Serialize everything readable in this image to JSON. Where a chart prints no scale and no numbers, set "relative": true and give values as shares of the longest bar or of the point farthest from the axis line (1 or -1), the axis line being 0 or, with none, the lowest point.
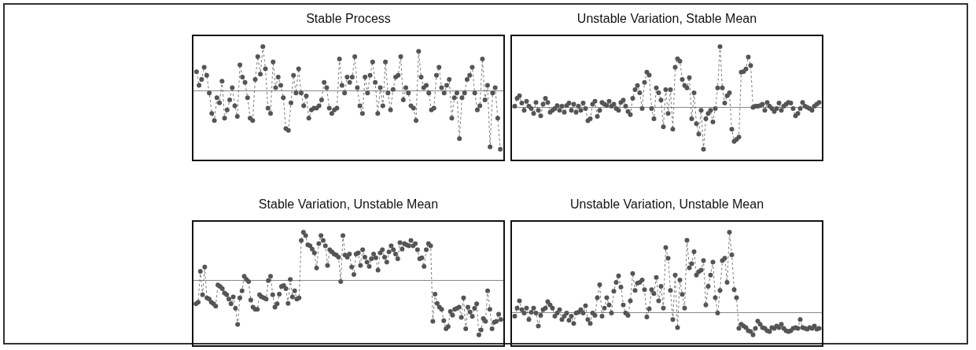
{
  "chart_data": [
    {
      "type": "line",
      "title": "Stable Process",
      "relative": true,
      "color": "#555555",
      "marker": "circle",
      "line_style": "dotted",
      "categories": [
        null,
        null,
        null,
        null,
        null,
        null,
        null,
        null,
        null,
        null,
        null,
        null,
        null,
        null,
        null,
        null,
        null,
        null,
        null,
        null,
        null,
        null,
        null,
        null,
        null,
        null,
        null,
        null,
        null,
        null,
        null,
        null,
        null,
        null,
        null,
        null,
        null,
        null,
        null,
        null,
        null,
        null,
        null,
        null,
        null,
        null,
        null,
        null,
        null,
        null,
        null,
        null,
        null,
        null,
        null,
        null,
        null,
        null,
        null,
        null,
        null,
        null,
        null,
        null,
        null,
        null,
        null,
        null,
        null,
        null,
        null,
        null,
        null,
        null,
        null,
        null,
        null,
        null,
        null,
        null,
        null,
        null,
        null,
        null,
        null,
        null,
        null,
        null,
        null,
        null,
        null,
        null,
        null,
        null,
        null,
        null,
        null,
        null,
        null,
        null,
        null,
        null,
        null,
        null,
        null,
        null,
        null,
        null,
        null,
        null,
        null,
        null,
        null,
        null,
        null,
        null,
        null,
        null,
        null,
        null
      ],
      "values": [
        0.32,
        0.09,
        0.19,
        0.4,
        0.26,
        -0.04,
        -0.39,
        -0.51,
        -0.12,
        -0.21,
        0.16,
        -0.47,
        -0.33,
        -0.16,
        0.05,
        -0.26,
        -0.44,
        0.44,
        0.23,
        0.14,
        -0.12,
        -0.47,
        -0.51,
        0.19,
        0.58,
        0.28,
        0.75,
        0.37,
        -0.3,
        -0.39,
        0.49,
        0.05,
        0.23,
        0.09,
        -0.12,
        -0.65,
        -0.68,
        -0.21,
        0.26,
        -0.04,
        0.37,
        -0.04,
        -0.26,
        -0.09,
        -0.47,
        -0.33,
        -0.3,
        -0.3,
        -0.26,
        -0.16,
        0.14,
        0.05,
        -0.3,
        -0.39,
        -0.33,
        -0.3,
        0.54,
        0.09,
        -0.04,
        0.23,
        0.14,
        0.23,
        0.58,
        0.05,
        -0.26,
        -0.39,
        0.23,
        -0.04,
        0.26,
        0.49,
        0.14,
        -0.39,
        0.05,
        -0.26,
        0.49,
        -0.04,
        -0.33,
        0.02,
        0.23,
        0.26,
        0.58,
        -0.16,
        0.05,
        -0.04,
        -0.26,
        -0.3,
        -0.51,
        0.67,
        0.23,
        0.05,
        0.09,
        -0.04,
        -0.33,
        -0.3,
        0.26,
        0.4,
        0.05,
        -0.04,
        0.09,
        0.19,
        -0.47,
        -0.12,
        -0.04,
        -0.82,
        -0.12,
        -0.04,
        0.19,
        0.26,
        0.4,
        -0.04,
        -0.33,
        -0.26,
        0.54,
        -0.16,
        0.09,
        -0.96,
        -0.04,
        0.05,
        -0.47,
        -1.0
      ]
    },
    {
      "type": "line",
      "title": "Unstable Variation, Stable Mean",
      "relative": true,
      "color": "#555555",
      "marker": "circle",
      "line_style": "dotted",
      "categories": [
        null,
        null,
        null,
        null,
        null,
        null,
        null,
        null,
        null,
        null,
        null,
        null,
        null,
        null,
        null,
        null,
        null,
        null,
        null,
        null,
        null,
        null,
        null,
        null,
        null,
        null,
        null,
        null,
        null,
        null,
        null,
        null,
        null,
        null,
        null,
        null,
        null,
        null,
        null,
        null,
        null,
        null,
        null,
        null,
        null,
        null,
        null,
        null,
        null,
        null,
        null,
        null,
        null,
        null,
        null,
        null,
        null,
        null,
        null,
        null,
        null,
        null,
        null,
        null,
        null,
        null,
        null,
        null,
        null,
        null,
        null,
        null,
        null,
        null,
        null,
        null,
        null,
        null,
        null,
        null,
        null,
        null,
        null,
        null,
        null,
        null,
        null,
        null,
        null,
        null,
        null,
        null,
        null,
        null,
        null,
        null,
        null,
        null,
        null,
        null,
        null,
        null,
        null,
        null,
        null,
        null,
        null,
        null,
        null,
        null,
        null,
        null,
        null,
        null,
        null,
        null,
        null,
        null,
        null,
        null,
        null,
        null,
        null,
        null,
        null,
        null,
        null,
        null,
        null,
        null
      ],
      "values": [
        0.02,
        0.15,
        0.19,
        0.07,
        -0.05,
        0.1,
        0.02,
        -0.02,
        -0.1,
        0.08,
        -0.05,
        -0.14,
        0.05,
        0.15,
        0.08,
        -0.08,
        -0.05,
        -0.02,
        0.03,
        -0.05,
        0.02,
        -0.08,
        0.03,
        0.07,
        -0.05,
        0.05,
        -0.08,
        0.02,
        -0.05,
        0.07,
        -0.02,
        -0.22,
        -0.19,
        0.05,
        0.1,
        -0.15,
        -0.05,
        0.08,
        0.05,
        0.03,
        0.1,
        0.02,
        0.05,
        -0.02,
        -0.05,
        0.08,
        0.12,
        0.02,
        -0.07,
        -0.12,
        0.15,
        0.29,
        0.36,
        0.24,
        -0.02,
        0.41,
        0.58,
        0.53,
        -0.02,
        -0.19,
        0.32,
        0.24,
        0.12,
        -0.32,
        0.29,
        -0.1,
        0.29,
        -0.36,
        0.66,
        0.8,
        0.76,
        0.46,
        0.36,
        0.32,
        0.49,
        -0.19,
        0.24,
        -0.27,
        -0.44,
        -0.05,
        -0.69,
        -0.19,
        -0.1,
        -0.05,
        -0.24,
        -0.02,
        0.32,
        1.0,
        0.32,
        0.07,
        0.19,
        0.24,
        -0.36,
        -0.56,
        -0.53,
        -0.49,
        0.58,
        0.59,
        0.63,
        0.83,
        0.69,
        0,
        0.02,
        0.02,
        0.03,
        0.05,
        -0.05,
        0.08,
        0.02,
        -0.02,
        -0.07,
        -0.02,
        0.07,
        -0.05,
        0.02,
        0.05,
        0.08,
        0.07,
        -0.02,
        -0.14,
        -0.1,
        -0.02,
        0.08,
        0.02,
        0,
        -0.02,
        -0.05,
        0.02,
        0.05,
        0.08
      ]
    },
    {
      "type": "line",
      "title": "Stable Variation, Unstable Mean",
      "relative": true,
      "color": "#555555",
      "marker": "circle",
      "line_style": "dotted",
      "categories": [
        null,
        null,
        null,
        null,
        null,
        null,
        null,
        null,
        null,
        null,
        null,
        null,
        null,
        null,
        null,
        null,
        null,
        null,
        null,
        null,
        null,
        null,
        null,
        null,
        null,
        null,
        null,
        null,
        null,
        null,
        null,
        null,
        null,
        null,
        null,
        null,
        null,
        null,
        null,
        null,
        null,
        null,
        null,
        null,
        null,
        null,
        null,
        null,
        null,
        null,
        null,
        null,
        null,
        null,
        null,
        null,
        null,
        null,
        null,
        null,
        null,
        null,
        null,
        null,
        null,
        null,
        null,
        null,
        null,
        null,
        null,
        null,
        null,
        null,
        null,
        null,
        null,
        null,
        null,
        null,
        null,
        null,
        null,
        null,
        null,
        null,
        null,
        null,
        null,
        null,
        null,
        null,
        null,
        null,
        null,
        null,
        null,
        null,
        null,
        null,
        null,
        null,
        null,
        null,
        null,
        null,
        null,
        null,
        null,
        null,
        null,
        null,
        null,
        null,
        null,
        null,
        null,
        null,
        null,
        null,
        null,
        null,
        null,
        null,
        null,
        null,
        null,
        null,
        null,
        null,
        null,
        null,
        null,
        null,
        null,
        null,
        null,
        null,
        null,
        null
      ],
      "values": [
        -0.43,
        -0.4,
        0.17,
        -0.26,
        0.25,
        -0.32,
        -0.34,
        -0.4,
        -0.43,
        -0.47,
        -0.08,
        -0.11,
        -0.15,
        -0.23,
        -0.26,
        -0.34,
        -0.43,
        -0.3,
        -0.51,
        -0.81,
        -0.32,
        -0.19,
        0.08,
        0.02,
        -0.02,
        -0.36,
        -0.49,
        -0.53,
        -0.53,
        -0.26,
        -0.3,
        -0.32,
        -0.34,
        0,
        0.08,
        -0.26,
        -0.49,
        -0.43,
        -0.25,
        -0.11,
        -0.09,
        -0.15,
        -0.42,
        0.02,
        -0.3,
        -0.19,
        -0.34,
        -0.32,
        0.74,
        0.89,
        0.83,
        0.66,
        0.64,
        0.58,
        0.51,
        0.23,
        0.68,
        0.83,
        0.74,
        0.64,
        0.28,
        0.57,
        0.53,
        0.49,
        0.47,
        0.43,
        -0.02,
        0.83,
        0.47,
        0.43,
        0.49,
        0.25,
        0.11,
        0.49,
        0.51,
        0.28,
        0.57,
        0.43,
        0.34,
        0.26,
        0.4,
        0.49,
        0.42,
        0.19,
        0.51,
        0.57,
        0.43,
        0.34,
        0.53,
        0.64,
        0.57,
        0.49,
        0.4,
        0.7,
        0.58,
        0.68,
        0.66,
        0.64,
        0.74,
        0.64,
        0.68,
        0.57,
        0.4,
        0.42,
        0.26,
        0.57,
        0.68,
        0.64,
        -0.75,
        -0.25,
        -0.42,
        -0.49,
        -0.53,
        -0.74,
        -0.89,
        -0.85,
        -0.57,
        -0.64,
        -0.53,
        -0.51,
        -0.49,
        -0.68,
        -0.32,
        -0.89,
        -0.49,
        -0.58,
        -0.66,
        -0.51,
        -0.43,
        -1.0,
        -0.91,
        -0.7,
        -0.75,
        -0.19,
        -0.53,
        -0.89,
        -0.77,
        -0.75,
        -0.62,
        -0.72
      ]
    },
    {
      "type": "line",
      "title": "Unstable Variation, Unstable Mean",
      "relative": true,
      "color": "#555555",
      "marker": "circle",
      "line_style": "dotted",
      "categories": [
        null,
        null,
        null,
        null,
        null,
        null,
        null,
        null,
        null,
        null,
        null,
        null,
        null,
        null,
        null,
        null,
        null,
        null,
        null,
        null,
        null,
        null,
        null,
        null,
        null,
        null,
        null,
        null,
        null,
        null,
        null,
        null,
        null,
        null,
        null,
        null,
        null,
        null,
        null,
        null,
        null,
        null,
        null,
        null,
        null,
        null,
        null,
        null,
        null,
        null,
        null,
        null,
        null,
        null,
        null,
        null,
        null,
        null,
        null,
        null,
        null,
        null,
        null,
        null,
        null,
        null,
        null,
        null,
        null,
        null,
        null,
        null,
        null,
        null,
        null,
        null,
        null,
        null,
        null,
        null,
        null,
        null,
        null,
        null,
        null,
        null,
        null,
        null,
        null,
        null,
        null,
        null,
        null,
        null,
        null,
        null,
        null,
        null,
        null,
        null,
        null,
        null,
        null,
        null,
        null,
        null,
        null,
        null,
        null,
        null,
        null,
        null,
        null,
        null,
        null,
        null,
        null,
        null,
        null,
        null,
        null,
        null,
        null,
        null,
        null,
        null,
        null,
        null,
        null,
        null
      ],
      "values": [
        -0.04,
        0.06,
        0.15,
        0.04,
        0,
        0.06,
        -0.08,
        0.01,
        0.06,
        0,
        -0.16,
        -0.03,
        0.04,
        0.06,
        0.14,
        0.1,
        0.06,
        -0.04,
        0,
        0.04,
        -0.08,
        -0.04,
        0,
        -0.09,
        -0.04,
        -0.13,
        0,
        0.01,
        0.04,
        0,
        0.09,
        -0.08,
        -0.13,
        0,
        -0.03,
        0.19,
        0.35,
        -0.04,
        0.06,
        0.19,
        0.1,
        0,
        0.27,
        0.38,
        0.46,
        0.32,
        0.1,
        0,
        -0.03,
        0.15,
        0.49,
        0.28,
        0.37,
        0.38,
        0.41,
        0.29,
        -0.05,
        0.05,
        0.29,
        0.24,
        0.44,
        0.15,
        0.33,
        0.06,
        0.81,
        0.68,
        0.28,
        -0.08,
        0.47,
        -0.18,
        0.41,
        0.23,
        0.06,
        0.9,
        0.56,
        0.61,
        0.76,
        0.47,
        0.51,
        0.53,
        0.65,
        0.1,
        0.33,
        0.47,
        0.63,
        0.19,
        0,
        0.28,
        0.65,
        0.68,
        0.38,
        1.0,
        0.72,
        0.29,
        0.19,
        -0.19,
        -0.14,
        -0.16,
        -0.18,
        -0.22,
        -0.23,
        -0.27,
        -0.19,
        -0.1,
        -0.14,
        -0.18,
        -0.19,
        -0.22,
        -0.23,
        -0.18,
        -0.19,
        -0.16,
        -0.18,
        -0.14,
        -0.19,
        -0.22,
        -0.23,
        -0.22,
        -0.19,
        -0.18,
        -0.19,
        -0.08,
        -0.18,
        -0.19,
        -0.2,
        -0.18,
        -0.19,
        -0.16,
        -0.2,
        -0.19
      ]
    }
  ]
}
